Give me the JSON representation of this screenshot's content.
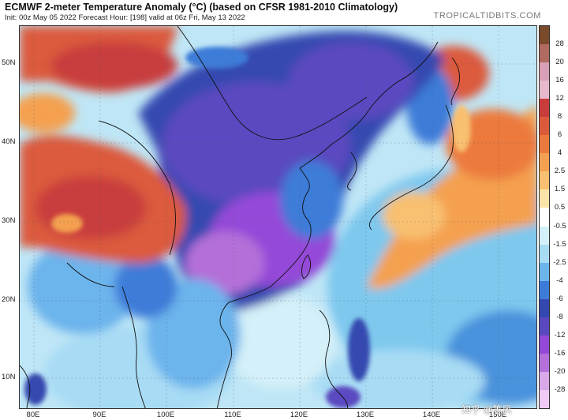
{
  "header": {
    "title": "ECMWF 2-meter Temperature Anomaly (°C) (based on CFSR 1981-2010 Climatology)",
    "subtitle": "Init: 00z May 05 2022   Forecast Hour: [198]   valid at 06z Fri, May 13 2022",
    "brand": "TROPICALTIDBITS.COM"
  },
  "map": {
    "lat_labels": [
      "50N",
      "40N",
      "30N",
      "20N",
      "10N"
    ],
    "lon_labels": [
      "80E",
      "90E",
      "100E",
      "110E",
      "120E",
      "130E",
      "140E",
      "150E"
    ]
  },
  "colorbar": {
    "labels": [
      "28",
      "20",
      "16",
      "12",
      "8",
      "6",
      "4",
      "2.5",
      "1.5",
      "0.5",
      "-0.5",
      "-1.5",
      "-2.5",
      "-4",
      "-6",
      "-8",
      "-12",
      "-16",
      "-20",
      "-28"
    ],
    "colors": [
      "#7a4a2a",
      "#b06a60",
      "#d8a0b6",
      "#e8b8cc",
      "#c83c3c",
      "#dc5a3c",
      "#ec7a3c",
      "#f4a050",
      "#f8c070",
      "#fce4a8",
      "#ffffff",
      "#d4f0f8",
      "#a8dcf4",
      "#6cb4ec",
      "#3c7cd8",
      "#3448b0",
      "#5a48c0",
      "#9448d8",
      "#b470d8",
      "#d8a8e8",
      "#eecaf4"
    ]
  },
  "watermark": "知乎 @等风"
}
